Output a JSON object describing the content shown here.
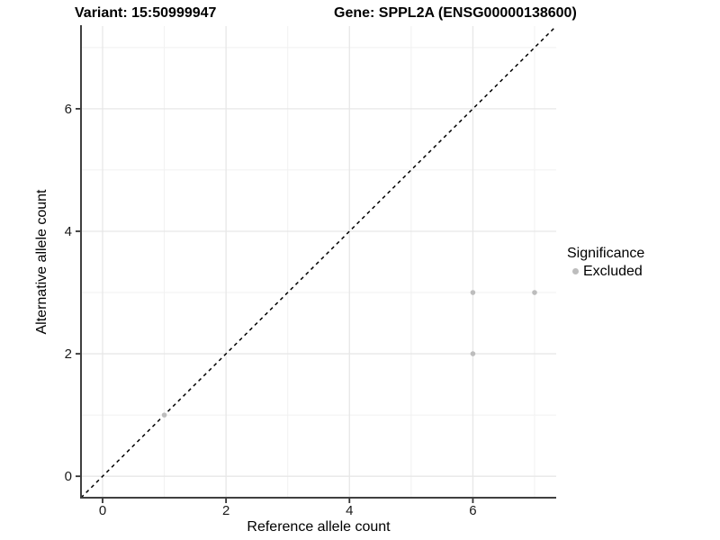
{
  "figure": {
    "title_left": "Variant: 15:50999947",
    "title_right": "Gene: SPPL2A (ENSG00000138600)"
  },
  "axes": {
    "x_label": "Reference allele count",
    "y_label": "Alternative allele count"
  },
  "legend": {
    "title": "Significance",
    "entries": [
      {
        "label": "Excluded",
        "color": "#bdbdbd"
      }
    ]
  },
  "colors": {
    "background": "#ffffff",
    "axis_line": "#404040",
    "tick_mark": "#333333",
    "tick_label": "#1a1a1a",
    "grid_major": "#e7e7e7",
    "grid_minor": "#f1f1f1",
    "point": "#bdbdbd",
    "identity_line": "#000000",
    "title_text": "#000000"
  },
  "chart_data": {
    "type": "scatter",
    "title": "Variant: 15:50999947 — Gene: SPPL2A (ENSG00000138600)",
    "xlabel": "Reference allele count",
    "ylabel": "Alternative allele count",
    "xlim": [
      -0.35,
      7.35
    ],
    "ylim": [
      -0.35,
      7.35
    ],
    "x_ticks": [
      0,
      2,
      4,
      6
    ],
    "y_ticks": [
      0,
      2,
      4,
      6
    ],
    "minor_gridlines": [
      1,
      3,
      5,
      7
    ],
    "grid": "on",
    "legend_position": "right",
    "reference_line": {
      "type": "identity",
      "equation": "y = x",
      "linestyle": "dashed",
      "color": "#000000"
    },
    "series": [
      {
        "name": "Excluded",
        "color": "#bdbdbd",
        "points": [
          [
            1,
            1
          ],
          [
            6,
            2
          ],
          [
            6,
            3
          ],
          [
            7,
            3
          ]
        ]
      }
    ]
  }
}
